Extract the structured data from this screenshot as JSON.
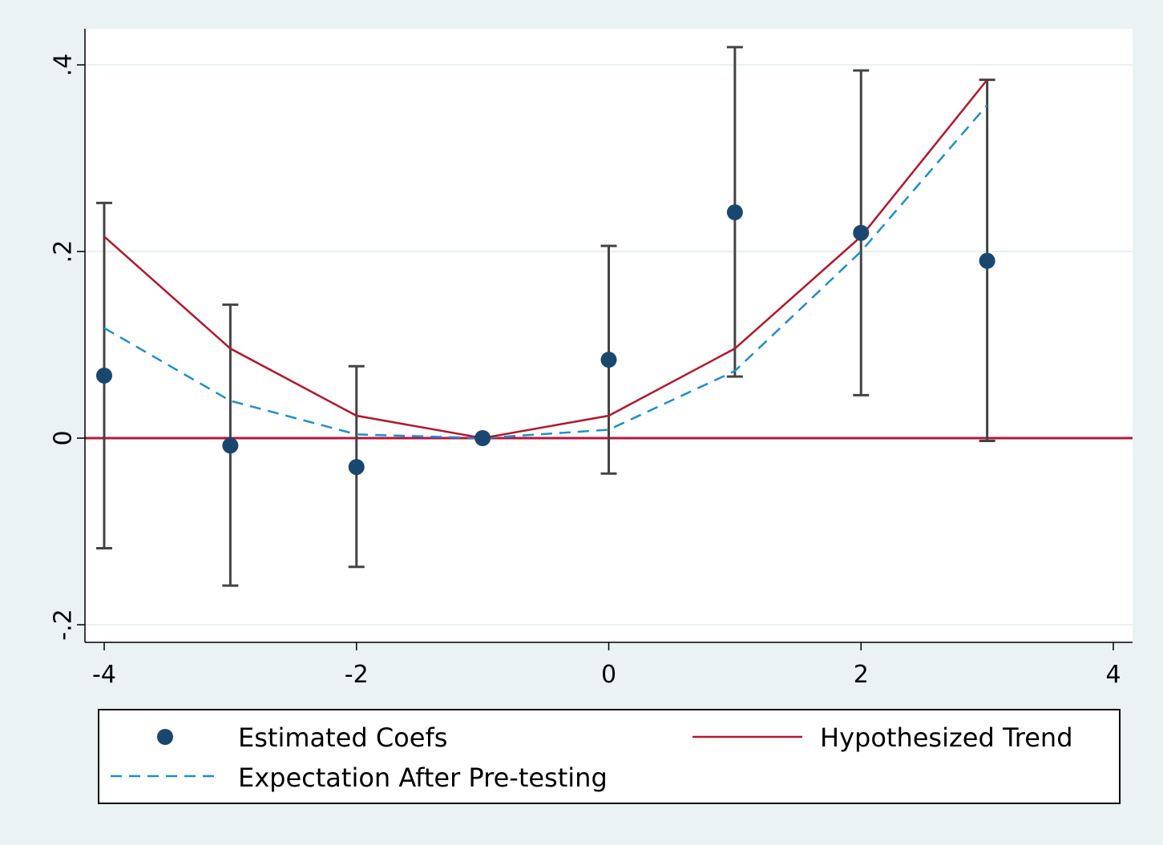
{
  "chart_data": {
    "type": "scatter",
    "title": "",
    "xlabel": "",
    "ylabel": "",
    "xlim": [
      -4,
      4
    ],
    "ylim": [
      -0.2,
      0.4
    ],
    "x_ticks": [
      -4,
      -2,
      0,
      2,
      4
    ],
    "x_tick_labels": [
      "-4",
      "-2",
      "0",
      "2",
      "4"
    ],
    "y_ticks": [
      -0.2,
      0,
      0.2,
      0.4
    ],
    "y_tick_labels": [
      "-.2",
      "0",
      ".2",
      ".4"
    ],
    "grid": true,
    "legend_position": "bottom",
    "reference_line": {
      "y": 0,
      "color": "#b5163c"
    },
    "series": [
      {
        "name": "Estimated Coefs",
        "kind": "points_with_ci",
        "color": "#1a476f",
        "x": [
          -4,
          -3,
          -2,
          -1,
          0,
          1,
          2,
          3
        ],
        "values": [
          0.067,
          -0.008,
          -0.031,
          0.0,
          0.084,
          0.242,
          0.22,
          0.19
        ],
        "ci_low": [
          -0.118,
          -0.158,
          -0.138,
          0.0,
          -0.038,
          0.066,
          0.046,
          -0.003
        ],
        "ci_high": [
          0.252,
          0.143,
          0.077,
          0.0,
          0.206,
          0.419,
          0.394,
          0.384
        ]
      },
      {
        "name": "Hypothesized Trend",
        "kind": "line",
        "color": "#b2182b",
        "x": [
          -4,
          -3,
          -2,
          -1,
          0,
          1,
          2,
          3
        ],
        "values": [
          0.216,
          0.096,
          0.024,
          0.0,
          0.024,
          0.096,
          0.216,
          0.384
        ]
      },
      {
        "name": "Expectation After Pre-testing",
        "kind": "dashed_line",
        "color": "#1c8fd0",
        "x": [
          -4,
          -3,
          -2,
          -1,
          0,
          1,
          2,
          3
        ],
        "values": [
          0.118,
          0.04,
          0.004,
          0.0,
          0.009,
          0.072,
          0.2,
          0.357
        ]
      }
    ]
  }
}
